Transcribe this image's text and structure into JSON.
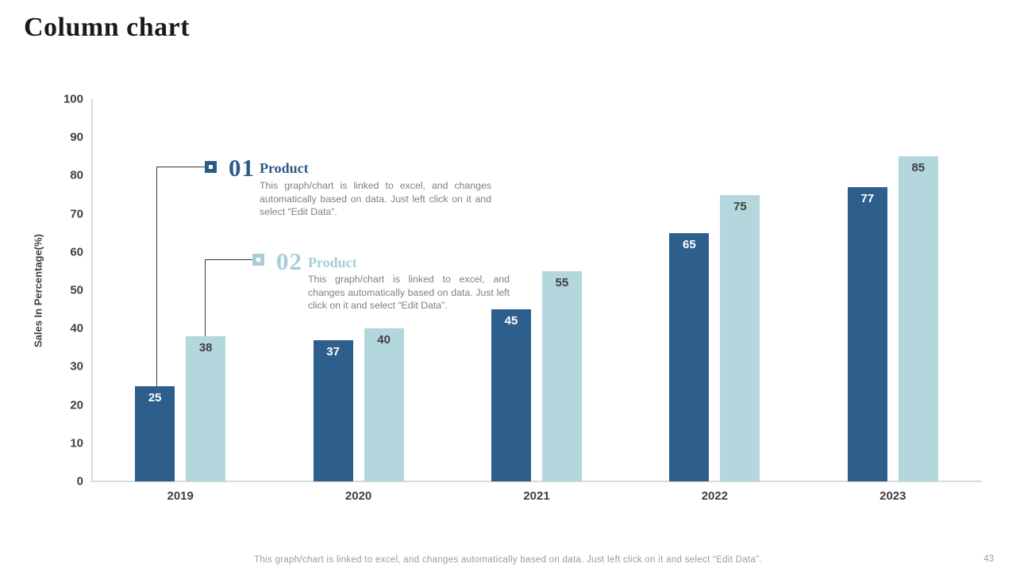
{
  "slide": {
    "title": "Column chart",
    "footer": "This graph/chart is linked to excel,  and changes automatically based on data. Just left click on it and select “Edit Data”.",
    "page_number": "43"
  },
  "annotations": [
    {
      "number": "01",
      "title": "Product",
      "body": "This graph/chart is linked to excel, and changes automatically based on data. Just left click on it and select “Edit Data”.",
      "accent": "#2e5a87"
    },
    {
      "number": "02",
      "title": "Product",
      "body": "This graph/chart is linked to excel, and changes automatically based on data. Just left click on it and select “Edit Data”.",
      "accent": "#a9cdd7"
    }
  ],
  "chart_data": {
    "type": "bar",
    "title": "Column chart",
    "categories": [
      "2019",
      "2020",
      "2021",
      "2022",
      "2023"
    ],
    "series": [
      {
        "name": "Product 01",
        "color": "#2e5e8c",
        "label_color": "#ffffff",
        "values": [
          25,
          37,
          45,
          65,
          77
        ]
      },
      {
        "name": "Product 02",
        "color": "#b4d6dd",
        "label_color": "#3f3f3f",
        "values": [
          38,
          40,
          55,
          75,
          85
        ]
      }
    ],
    "xlabel": "",
    "ylabel": "Sales In Percentage(%)",
    "ylim": [
      0,
      100
    ],
    "ytick_step": 10,
    "grid": false,
    "legend_position": "none",
    "value_labels": "inside-top"
  }
}
